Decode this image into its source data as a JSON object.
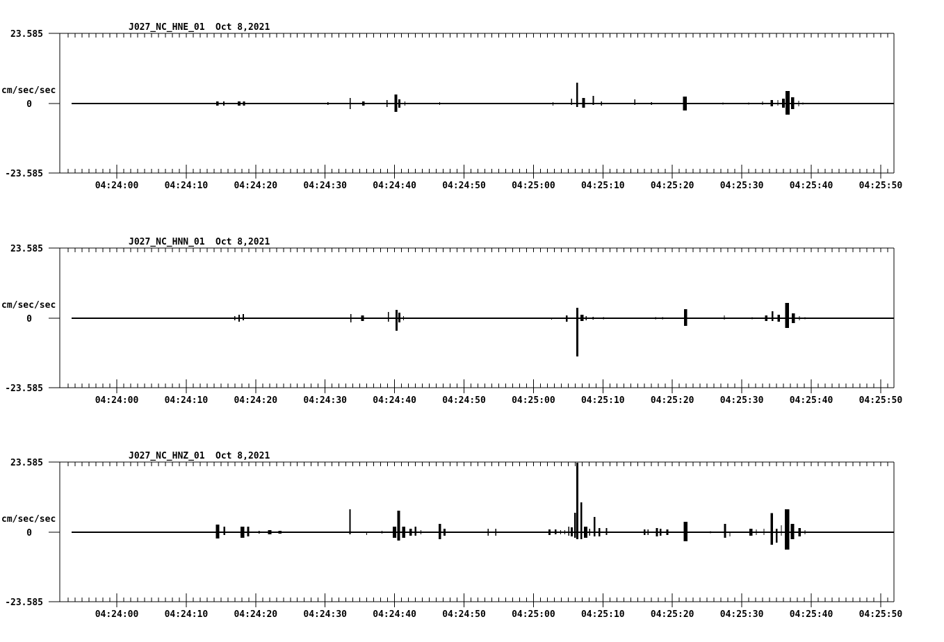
{
  "page": {
    "background": "#ffffff",
    "foreground": "#000000"
  },
  "chart_data": [
    {
      "type": "line",
      "title": "J027_NC_HNE_01",
      "date_label": "Oct 8,2021",
      "ylabel": "cm/sec/sec",
      "y_axis_labels": {
        "top": "23.585",
        "zero": "0",
        "bottom": "-23.585"
      },
      "ylim": [
        -23.585,
        23.585
      ],
      "x_tick_labels": [
        "04:24:00",
        "04:24:10",
        "04:24:20",
        "04:24:30",
        "04:24:40",
        "04:24:50",
        "04:25:00",
        "04:25:10",
        "04:25:20",
        "04:25:30",
        "04:25:40",
        "04:25:50"
      ],
      "x_minor_tick_seconds": 1,
      "x_major_tick_seconds": 10,
      "time_origin_label": "04:24:00",
      "trace_start_offset_sec": -6.5,
      "trace_end_offset_sec": 111.9,
      "baseline_value": 0,
      "grid": false,
      "spikes_t_up_down_w": [
        [
          1.2,
          0.2,
          0.2
        ],
        [
          11.4,
          0.2,
          0.2
        ],
        [
          14.5,
          0.7,
          0.7,
          0.35
        ],
        [
          15.4,
          0.7,
          0.7,
          0.2
        ],
        [
          17.6,
          0.7,
          0.7,
          0.4
        ],
        [
          18.3,
          0.7,
          0.7,
          0.3
        ],
        [
          19.4,
          0.2,
          0.2
        ],
        [
          30.4,
          0.5,
          0.5
        ],
        [
          33.6,
          1.9,
          1.9,
          0.15
        ],
        [
          35.5,
          0.7,
          0.7,
          0.35
        ],
        [
          37.4,
          0.2,
          0.2
        ],
        [
          38.9,
          1.2,
          1.2,
          0.15
        ],
        [
          40.2,
          3.1,
          2.8,
          0.4
        ],
        [
          40.7,
          1.4,
          1.4,
          0.3
        ],
        [
          41.5,
          0.7,
          0.7
        ],
        [
          42.2,
          0.2,
          0.2
        ],
        [
          43.0,
          0.2,
          0.2
        ],
        [
          43.7,
          0.2,
          0.2
        ],
        [
          45.9,
          0.2,
          0.2
        ],
        [
          46.5,
          0.5,
          0.5
        ],
        [
          47.2,
          0.2,
          0.2
        ],
        [
          53.5,
          0.2,
          0.2
        ],
        [
          62.8,
          0.5,
          0.7
        ],
        [
          63.8,
          0.2,
          0.2
        ],
        [
          65.5,
          1.6,
          0.5
        ],
        [
          66.3,
          7.0,
          1.2,
          0.25
        ],
        [
          67.2,
          1.9,
          1.4,
          0.4
        ],
        [
          68.6,
          2.6,
          0.5,
          0.2
        ],
        [
          69.8,
          0.7,
          0.7
        ],
        [
          72.4,
          0.2,
          0.2
        ],
        [
          74.6,
          1.4,
          0.5
        ],
        [
          77.0,
          0.5,
          0.5
        ],
        [
          81.8,
          2.3,
          2.3,
          0.55
        ],
        [
          87.3,
          0.4,
          0.4
        ],
        [
          91.0,
          0.4,
          0.4
        ],
        [
          93.0,
          0.7,
          0.5
        ],
        [
          94.3,
          1.2,
          0.9,
          0.35
        ],
        [
          95.2,
          1.2,
          0.7
        ],
        [
          96.0,
          1.6,
          1.4,
          0.4
        ],
        [
          96.6,
          4.2,
          3.8,
          0.6
        ],
        [
          97.3,
          2.1,
          1.9,
          0.45
        ],
        [
          98.2,
          0.9,
          0.9
        ],
        [
          98.8,
          0.4,
          0.4
        ]
      ]
    },
    {
      "type": "line",
      "title": "J027_NC_HNN_01",
      "date_label": "Oct 8,2021",
      "ylabel": "cm/sec/sec",
      "y_axis_labels": {
        "top": "23.585",
        "zero": "0",
        "bottom": "-23.585"
      },
      "ylim": [
        -23.585,
        23.585
      ],
      "x_tick_labels": [
        "04:24:00",
        "04:24:10",
        "04:24:20",
        "04:24:30",
        "04:24:40",
        "04:24:50",
        "04:25:00",
        "04:25:10",
        "04:25:20",
        "04:25:30",
        "04:25:40",
        "04:25:50"
      ],
      "x_minor_tick_seconds": 1,
      "x_major_tick_seconds": 10,
      "time_origin_label": "04:24:00",
      "trace_start_offset_sec": -6.5,
      "trace_end_offset_sec": 111.9,
      "baseline_value": 0,
      "grid": false,
      "spikes_t_up_down_w": [
        [
          14.6,
          0.2,
          0.2
        ],
        [
          15.4,
          0.2,
          0.2
        ],
        [
          17.0,
          0.7,
          0.7
        ],
        [
          17.6,
          1.2,
          1.2,
          0.2
        ],
        [
          18.2,
          1.4,
          0.7,
          0.2
        ],
        [
          19.3,
          0.2,
          0.2
        ],
        [
          20.3,
          0.2,
          0.2
        ],
        [
          30.3,
          0.2,
          0.2
        ],
        [
          32.5,
          0.2,
          0.2
        ],
        [
          33.7,
          1.4,
          1.4,
          0.15
        ],
        [
          35.4,
          0.9,
          0.9,
          0.4
        ],
        [
          37.7,
          0.2,
          0.2
        ],
        [
          39.1,
          2.1,
          1.2,
          0.15
        ],
        [
          40.3,
          2.8,
          4.2,
          0.3
        ],
        [
          40.7,
          1.9,
          1.4,
          0.3
        ],
        [
          41.3,
          0.7,
          0.7
        ],
        [
          43.2,
          0.2,
          0.2
        ],
        [
          45.2,
          0.2,
          0.2
        ],
        [
          62.6,
          0.2,
          0.5
        ],
        [
          64.8,
          0.9,
          1.2,
          0.25
        ],
        [
          66.3,
          3.5,
          12.9,
          0.3
        ],
        [
          67.0,
          1.2,
          0.9,
          0.45
        ],
        [
          67.6,
          0.7,
          0.7
        ],
        [
          68.6,
          0.5,
          0.5
        ],
        [
          70.1,
          0.4,
          0.4
        ],
        [
          77.6,
          0.4,
          0.4
        ],
        [
          78.6,
          0.4,
          0.4
        ],
        [
          81.9,
          3.1,
          2.6,
          0.45
        ],
        [
          87.5,
          0.9,
          0.5
        ],
        [
          91.5,
          0.4,
          0.4
        ],
        [
          93.5,
          0.9,
          0.9,
          0.35
        ],
        [
          94.4,
          2.3,
          0.9,
          0.25
        ],
        [
          95.3,
          1.2,
          1.2,
          0.35
        ],
        [
          96.5,
          5.2,
          3.3,
          0.55
        ],
        [
          97.4,
          1.6,
          1.6,
          0.45
        ],
        [
          98.3,
          0.7,
          0.7
        ],
        [
          99.1,
          0.3,
          0.3
        ]
      ]
    },
    {
      "type": "line",
      "title": "J027_NC_HNZ_01",
      "date_label": "Oct 8,2021",
      "ylabel": "cm/sec/sec",
      "y_axis_labels": {
        "top": "23.585",
        "zero": "0",
        "bottom": "-23.585"
      },
      "ylim": [
        -23.585,
        23.585
      ],
      "x_tick_labels": [
        "04:24:00",
        "04:24:10",
        "04:24:20",
        "04:24:30",
        "04:24:40",
        "04:24:50",
        "04:25:00",
        "04:25:10",
        "04:25:20",
        "04:25:30",
        "04:25:40",
        "04:25:50"
      ],
      "x_minor_tick_seconds": 1,
      "x_major_tick_seconds": 10,
      "time_origin_label": "04:24:00",
      "trace_start_offset_sec": -6.5,
      "trace_end_offset_sec": 111.9,
      "baseline_value": 0,
      "grid": false,
      "spikes_t_up_down_w": [
        [
          1.2,
          0.2,
          0.2
        ],
        [
          8.2,
          0.2,
          0.2
        ],
        [
          8.8,
          0.2,
          0.2
        ],
        [
          10.2,
          0.2,
          0.2
        ],
        [
          11.0,
          0.2,
          0.2
        ],
        [
          12.0,
          0.2,
          0.2
        ],
        [
          14.5,
          2.6,
          2.1,
          0.5
        ],
        [
          15.5,
          1.9,
          0.9,
          0.25
        ],
        [
          16.6,
          0.2,
          0.2
        ],
        [
          18.1,
          1.9,
          1.9,
          0.55
        ],
        [
          18.9,
          1.9,
          1.4,
          0.3
        ],
        [
          20.5,
          0.5,
          0.5
        ],
        [
          22.0,
          0.7,
          0.7,
          0.5
        ],
        [
          23.5,
          0.5,
          0.5,
          0.45
        ],
        [
          25.8,
          0.2,
          0.2
        ],
        [
          29.2,
          0.2,
          0.2
        ],
        [
          33.6,
          7.8,
          0.7,
          0.2
        ],
        [
          36.0,
          0.2,
          0.9
        ],
        [
          37.2,
          0.2,
          0.2
        ],
        [
          38.2,
          0.5,
          0.5
        ],
        [
          40.0,
          1.9,
          1.9,
          0.5
        ],
        [
          40.6,
          7.3,
          2.8,
          0.4
        ],
        [
          41.3,
          1.9,
          1.9,
          0.45
        ],
        [
          42.3,
          1.2,
          1.2,
          0.35
        ],
        [
          43.0,
          1.9,
          1.2,
          0.25
        ],
        [
          43.8,
          0.7,
          0.7
        ],
        [
          46.5,
          2.8,
          2.3,
          0.35
        ],
        [
          47.2,
          1.2,
          1.2,
          0.3
        ],
        [
          49.2,
          0.2,
          0.2
        ],
        [
          49.7,
          0.2,
          0.2
        ],
        [
          50.3,
          0.2,
          0.2
        ],
        [
          50.9,
          0.2,
          0.2
        ],
        [
          53.5,
          1.2,
          1.2,
          0.15
        ],
        [
          54.6,
          1.2,
          1.2,
          0.15
        ],
        [
          55.4,
          0.2,
          0.2
        ],
        [
          62.3,
          0.9,
          0.9,
          0.3
        ],
        [
          63.2,
          0.9,
          0.7,
          0.25
        ],
        [
          63.9,
          0.7,
          0.7
        ],
        [
          64.5,
          0.7,
          0.7
        ],
        [
          65.1,
          1.9,
          1.2
        ],
        [
          65.5,
          1.6,
          1.4,
          0.3
        ],
        [
          66.0,
          6.6,
          1.9,
          0.25
        ],
        [
          66.3,
          23.5,
          2.3,
          0.3
        ],
        [
          66.9,
          10.1,
          2.3,
          0.25
        ],
        [
          67.5,
          1.9,
          1.9,
          0.5
        ],
        [
          68.1,
          1.2,
          1.2
        ],
        [
          68.8,
          5.2,
          1.4,
          0.25
        ],
        [
          69.5,
          1.4,
          1.4,
          0.25
        ],
        [
          70.5,
          1.4,
          0.9,
          0.2
        ],
        [
          71.3,
          0.2,
          0.2
        ],
        [
          72.3,
          0.2,
          0.2
        ],
        [
          76.0,
          0.9,
          0.9,
          0.25
        ],
        [
          76.5,
          0.9,
          0.9
        ],
        [
          77.8,
          1.4,
          1.4,
          0.3
        ],
        [
          78.3,
          1.2,
          1.2,
          0.25
        ],
        [
          79.3,
          0.9,
          0.9,
          0.3
        ],
        [
          81.9,
          3.5,
          3.1,
          0.55
        ],
        [
          85.5,
          0.4,
          0.4
        ],
        [
          87.6,
          2.8,
          1.9,
          0.3
        ],
        [
          88.3,
          0.2,
          1.4
        ],
        [
          91.3,
          1.2,
          1.2,
          0.45
        ],
        [
          92.1,
          0.9,
          0.9
        ],
        [
          93.2,
          1.2,
          0.9
        ],
        [
          94.3,
          6.4,
          4.2,
          0.35
        ],
        [
          95.0,
          1.2,
          3.5,
          0.25
        ],
        [
          95.7,
          2.3,
          1.2
        ],
        [
          96.5,
          7.8,
          5.9,
          0.65
        ],
        [
          97.3,
          2.8,
          2.3,
          0.5
        ],
        [
          98.3,
          1.4,
          1.4,
          0.35
        ],
        [
          99.1,
          0.7,
          0.7
        ],
        [
          101.3,
          0.2,
          0.2
        ],
        [
          108.1,
          0.2,
          0.2
        ]
      ]
    }
  ]
}
